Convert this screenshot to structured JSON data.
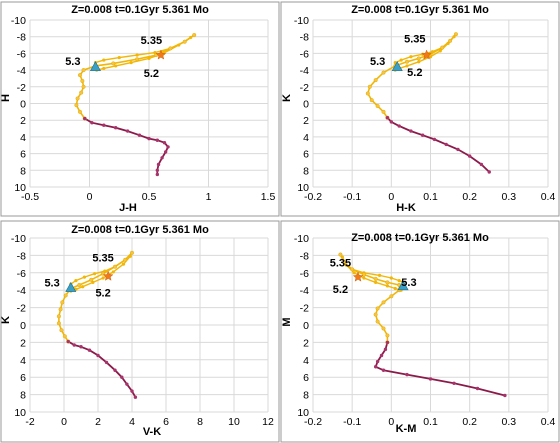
{
  "chart_data": [
    {
      "type": "line",
      "title": "Z=0.008  t=0.1Gyr  5.361 Mo",
      "xlabel": "J-H",
      "ylabel": "H",
      "xlim": [
        -0.5,
        1.5
      ],
      "ylim": [
        10,
        -10
      ],
      "xticks": [
        "-0.5",
        "0",
        "0.5",
        "1",
        "1.5"
      ],
      "yticks": [
        "-10",
        "-8",
        "-6",
        "-4",
        "-2",
        "0",
        "2",
        "4",
        "6",
        "8",
        "10"
      ],
      "grid": true,
      "band_color": "#f2b705",
      "tail_color": "#8b1a4a",
      "marker_color": "#3aa0c8",
      "upper_track": [
        [
          0.88,
          -8.2
        ],
        [
          0.8,
          -7.4
        ],
        [
          0.68,
          -6.6
        ],
        [
          0.55,
          -6.1
        ],
        [
          0.4,
          -5.8
        ],
        [
          0.25,
          -5.5
        ],
        [
          0.12,
          -5.2
        ],
        [
          0.05,
          -4.9
        ]
      ],
      "lower_track": [
        [
          0.85,
          -7.9
        ],
        [
          0.75,
          -7.0
        ],
        [
          0.62,
          -6.0
        ],
        [
          0.5,
          -5.4
        ],
        [
          0.35,
          -4.9
        ],
        [
          0.22,
          -4.5
        ],
        [
          0.12,
          -4.2
        ],
        [
          0.06,
          -4.0
        ]
      ],
      "track": [
        [
          0.88,
          -8.2
        ],
        [
          0.8,
          -7.4
        ],
        [
          0.68,
          -6.6
        ],
        [
          0.56,
          -5.8
        ],
        [
          0.4,
          -5.3
        ],
        [
          0.2,
          -4.8
        ],
        [
          0.05,
          -4.5
        ],
        [
          -0.05,
          -4.0
        ],
        [
          -0.08,
          -3.4
        ],
        [
          -0.06,
          -2.7
        ],
        [
          -0.05,
          -2.0
        ],
        [
          -0.07,
          -1.3
        ],
        [
          -0.1,
          -0.6
        ],
        [
          -0.11,
          0.2
        ],
        [
          -0.08,
          1.0
        ],
        [
          -0.04,
          1.8
        ],
        [
          0.02,
          2.3
        ],
        [
          0.12,
          2.6
        ],
        [
          0.22,
          2.9
        ],
        [
          0.32,
          3.3
        ],
        [
          0.42,
          3.8
        ],
        [
          0.5,
          4.2
        ],
        [
          0.57,
          4.4
        ],
        [
          0.63,
          4.7
        ],
        [
          0.66,
          5.2
        ],
        [
          0.64,
          5.8
        ],
        [
          0.61,
          6.5
        ],
        [
          0.58,
          7.3
        ],
        [
          0.57,
          8.0
        ],
        [
          0.57,
          8.5
        ]
      ],
      "tail_start_index": 15,
      "marker_triangle": [
        0.05,
        -4.4
      ],
      "marker_star": [
        0.6,
        -5.8
      ],
      "annotations": [
        {
          "text": "5.3",
          "x": -0.14,
          "y": -4.6
        },
        {
          "text": "5.35",
          "x": 0.52,
          "y": -7.1
        },
        {
          "text": "5.2",
          "x": 0.52,
          "y": -3.2
        }
      ]
    },
    {
      "type": "line",
      "title": "Z=0.008  t=0.1Gyr  5.361 Mo",
      "xlabel": "H-K",
      "ylabel": "K",
      "xlim": [
        -0.2,
        0.4
      ],
      "ylim": [
        10,
        -10
      ],
      "xticks": [
        "-0.2",
        "-0.1",
        "0",
        "0.1",
        "0.2",
        "0.3",
        "0.4"
      ],
      "yticks": [
        "-10",
        "-8",
        "-6",
        "-4",
        "-2",
        "0",
        "2",
        "4",
        "6",
        "8",
        "10"
      ],
      "grid": true,
      "band_color": "#f2b705",
      "tail_color": "#8b1a4a",
      "marker_color": "#3aa0c8",
      "upper_track": [
        [
          0.165,
          -8.3
        ],
        [
          0.15,
          -7.5
        ],
        [
          0.13,
          -6.7
        ],
        [
          0.105,
          -6.2
        ],
        [
          0.08,
          -5.9
        ],
        [
          0.05,
          -5.6
        ],
        [
          0.025,
          -5.2
        ],
        [
          0.01,
          -4.9
        ]
      ],
      "lower_track": [
        [
          0.16,
          -8.0
        ],
        [
          0.145,
          -7.2
        ],
        [
          0.125,
          -6.3
        ],
        [
          0.1,
          -5.6
        ],
        [
          0.07,
          -5.0
        ],
        [
          0.04,
          -4.5
        ],
        [
          0.02,
          -4.2
        ],
        [
          0.01,
          -4.0
        ]
      ],
      "track": [
        [
          0.165,
          -8.3
        ],
        [
          0.15,
          -7.5
        ],
        [
          0.13,
          -6.7
        ],
        [
          0.1,
          -5.9
        ],
        [
          0.07,
          -5.4
        ],
        [
          0.04,
          -5.0
        ],
        [
          0.01,
          -4.5
        ],
        [
          -0.02,
          -3.7
        ],
        [
          -0.04,
          -2.8
        ],
        [
          -0.055,
          -2.0
        ],
        [
          -0.06,
          -1.2
        ],
        [
          -0.05,
          -0.4
        ],
        [
          -0.035,
          0.3
        ],
        [
          -0.02,
          1.0
        ],
        [
          -0.01,
          1.7
        ],
        [
          0.0,
          2.2
        ],
        [
          0.02,
          2.7
        ],
        [
          0.05,
          3.3
        ],
        [
          0.08,
          3.8
        ],
        [
          0.11,
          4.3
        ],
        [
          0.14,
          4.9
        ],
        [
          0.17,
          5.5
        ],
        [
          0.2,
          6.3
        ],
        [
          0.23,
          7.3
        ],
        [
          0.25,
          8.2
        ]
      ],
      "tail_start_index": 14,
      "marker_triangle": [
        0.015,
        -4.4
      ],
      "marker_star": [
        0.09,
        -5.8
      ],
      "annotations": [
        {
          "text": "5.3",
          "x": -0.035,
          "y": -4.6
        },
        {
          "text": "5.35",
          "x": 0.06,
          "y": -7.3
        },
        {
          "text": "5.2",
          "x": 0.06,
          "y": -3.3
        }
      ]
    },
    {
      "type": "line",
      "title": "Z=0.008  t=0.1Gyr  5.361 Mo",
      "xlabel": "V-K",
      "ylabel": "K",
      "xlim": [
        -2,
        12
      ],
      "ylim": [
        10,
        -10
      ],
      "xticks": [
        "-2",
        "0",
        "2",
        "4",
        "6",
        "8",
        "10",
        "12"
      ],
      "yticks": [
        "-10",
        "-8",
        "-6",
        "-4",
        "-2",
        "0",
        "2",
        "4",
        "6",
        "8",
        "10"
      ],
      "grid": true,
      "band_color": "#f2b705",
      "tail_color": "#8b1a4a",
      "marker_color": "#3aa0c8",
      "upper_track": [
        [
          4.0,
          -8.3
        ],
        [
          3.6,
          -7.5
        ],
        [
          3.0,
          -6.7
        ],
        [
          2.4,
          -6.2
        ],
        [
          1.8,
          -5.9
        ],
        [
          1.2,
          -5.5
        ],
        [
          0.7,
          -5.1
        ],
        [
          0.4,
          -4.7
        ]
      ],
      "lower_track": [
        [
          3.9,
          -7.9
        ],
        [
          3.5,
          -7.0
        ],
        [
          2.9,
          -6.1
        ],
        [
          2.3,
          -5.4
        ],
        [
          1.7,
          -4.9
        ],
        [
          1.1,
          -4.4
        ],
        [
          0.7,
          -4.1
        ],
        [
          0.4,
          -3.9
        ]
      ],
      "track": [
        [
          4.0,
          -8.3
        ],
        [
          3.6,
          -7.5
        ],
        [
          3.0,
          -6.7
        ],
        [
          2.3,
          -5.9
        ],
        [
          1.6,
          -5.2
        ],
        [
          0.9,
          -4.6
        ],
        [
          0.4,
          -4.2
        ],
        [
          0.1,
          -3.4
        ],
        [
          -0.1,
          -2.6
        ],
        [
          -0.2,
          -1.8
        ],
        [
          -0.3,
          -1.0
        ],
        [
          -0.3,
          -0.2
        ],
        [
          -0.15,
          0.6
        ],
        [
          0.05,
          1.3
        ],
        [
          0.25,
          1.9
        ],
        [
          0.6,
          2.3
        ],
        [
          1.0,
          2.5
        ],
        [
          1.5,
          2.9
        ],
        [
          2.0,
          3.5
        ],
        [
          2.5,
          4.3
        ],
        [
          3.0,
          5.2
        ],
        [
          3.4,
          6.0
        ],
        [
          3.7,
          6.8
        ],
        [
          4.0,
          7.6
        ],
        [
          4.2,
          8.3
        ]
      ],
      "tail_start_index": 14,
      "marker_triangle": [
        0.4,
        -4.3
      ],
      "marker_star": [
        2.6,
        -5.6
      ],
      "annotations": [
        {
          "text": "5.3",
          "x": -0.7,
          "y": -4.4
        },
        {
          "text": "5.35",
          "x": 2.3,
          "y": -7.3
        },
        {
          "text": "5.2",
          "x": 2.3,
          "y": -3.3
        }
      ]
    },
    {
      "type": "line",
      "title": "Z=0.008  t=0.1Gyr  5.361 Mo",
      "xlabel": "K-M",
      "ylabel": "M",
      "xlim": [
        -0.2,
        0.4
      ],
      "ylim": [
        10,
        -10
      ],
      "xticks": [
        "-0.2",
        "-0.1",
        "0",
        "0.1",
        "0.2",
        "0.3",
        "0.4"
      ],
      "yticks": [
        "-10",
        "-8",
        "-6",
        "-4",
        "-2",
        "0",
        "2",
        "4",
        "6",
        "8",
        "10"
      ],
      "grid": true,
      "band_color": "#f2b705",
      "tail_color": "#8b1a4a",
      "marker_color": "#3aa0c8",
      "upper_track": [
        [
          -0.13,
          -8.1
        ],
        [
          -0.12,
          -7.2
        ],
        [
          -0.1,
          -6.4
        ],
        [
          -0.07,
          -6.0
        ],
        [
          -0.03,
          -5.7
        ],
        [
          0.0,
          -5.4
        ],
        [
          0.02,
          -5.1
        ],
        [
          0.03,
          -4.9
        ]
      ],
      "lower_track": [
        [
          -0.125,
          -7.8
        ],
        [
          -0.115,
          -6.9
        ],
        [
          -0.095,
          -6.0
        ],
        [
          -0.07,
          -5.4
        ],
        [
          -0.04,
          -4.9
        ],
        [
          -0.01,
          -4.5
        ],
        [
          0.01,
          -4.2
        ],
        [
          0.025,
          -4.0
        ]
      ],
      "track": [
        [
          -0.13,
          -8.1
        ],
        [
          -0.12,
          -7.2
        ],
        [
          -0.1,
          -6.4
        ],
        [
          -0.07,
          -5.8
        ],
        [
          -0.04,
          -5.3
        ],
        [
          -0.01,
          -4.9
        ],
        [
          0.02,
          -4.6
        ],
        [
          0.02,
          -4.0
        ],
        [
          0.0,
          -3.3
        ],
        [
          -0.02,
          -2.6
        ],
        [
          -0.035,
          -1.9
        ],
        [
          -0.04,
          -1.2
        ],
        [
          -0.035,
          -0.4
        ],
        [
          -0.02,
          0.4
        ],
        [
          -0.01,
          1.2
        ],
        [
          -0.01,
          2.0
        ],
        [
          -0.015,
          2.8
        ],
        [
          -0.025,
          3.5
        ],
        [
          -0.035,
          4.2
        ],
        [
          -0.04,
          4.8
        ],
        [
          -0.02,
          5.2
        ],
        [
          0.04,
          5.7
        ],
        [
          0.1,
          6.2
        ],
        [
          0.16,
          6.7
        ],
        [
          0.22,
          7.3
        ],
        [
          0.29,
          8.1
        ]
      ],
      "tail_start_index": 15,
      "marker_triangle": [
        0.03,
        -4.5
      ],
      "marker_star": [
        -0.085,
        -5.5
      ],
      "annotations": [
        {
          "text": "5.3",
          "x": 0.045,
          "y": -4.5
        },
        {
          "text": "5.35",
          "x": -0.13,
          "y": -6.7
        },
        {
          "text": "5.2",
          "x": -0.13,
          "y": -3.7
        }
      ]
    }
  ]
}
